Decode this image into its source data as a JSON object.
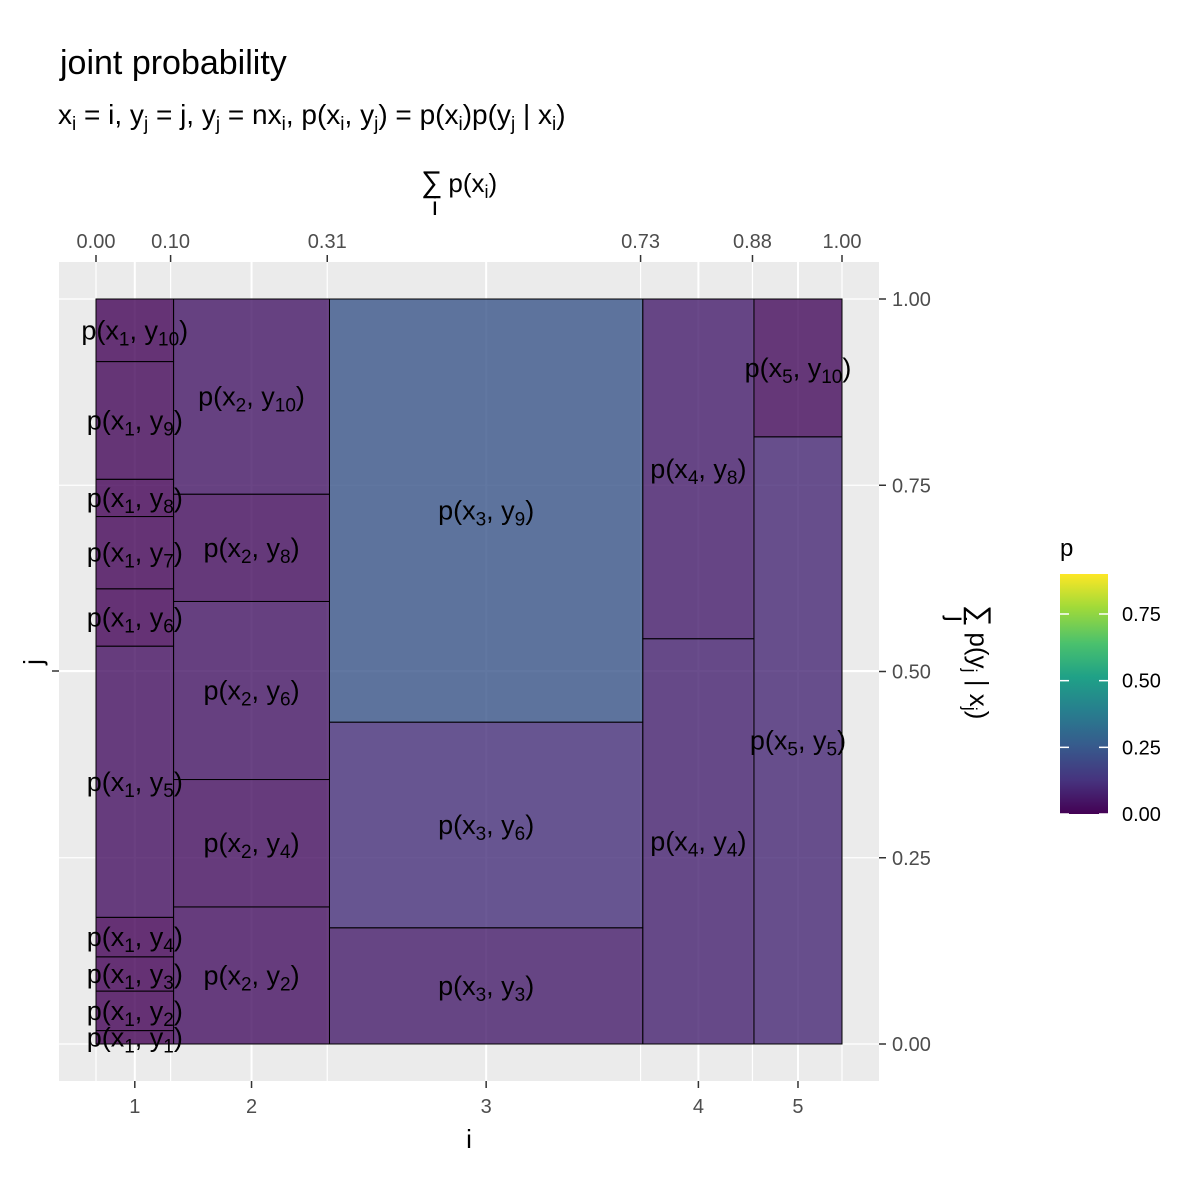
{
  "title": "joint probability",
  "subtitle": "x_i = i, y_j = j, y_j = nx_i, p(x_i, y_j) = p(x_i)p(y_j | x_i)",
  "chart_data": {
    "type": "heatmap",
    "subtype": "mosaic",
    "xlabel": "i",
    "ylabel": "j",
    "x_top_label": "∑_i p(x_i)",
    "y_right_label": "∑_j p(y_j | x_j)",
    "x_ticks": [
      "1",
      "2",
      "3",
      "4",
      "5"
    ],
    "x_top_ticks": [
      "0.00",
      "0.10",
      "0.31",
      "0.73",
      "0.88",
      "1.00"
    ],
    "y_right_ticks": [
      "0.00",
      "0.25",
      "0.50",
      "0.75",
      "1.00"
    ],
    "legend": {
      "title": "p",
      "ticks": [
        "0.00",
        "0.25",
        "0.50",
        "0.75"
      ],
      "range": [
        0,
        0.9
      ],
      "colormap": "viridis",
      "placement": "right"
    },
    "grid": true,
    "columns": [
      {
        "i": 1,
        "px_cum": [
          0.0,
          0.104
        ],
        "cells": [
          {
            "j": 1,
            "lo": 0.0,
            "hi": 0.018,
            "p": 0.001
          },
          {
            "j": 2,
            "lo": 0.018,
            "hi": 0.071,
            "p": 0.005
          },
          {
            "j": 3,
            "lo": 0.071,
            "hi": 0.117,
            "p": 0.005
          },
          {
            "j": 4,
            "lo": 0.117,
            "hi": 0.17,
            "p": 0.005
          },
          {
            "j": 5,
            "lo": 0.17,
            "hi": 0.534,
            "p": 0.038
          },
          {
            "j": 6,
            "lo": 0.534,
            "hi": 0.611,
            "p": 0.008
          },
          {
            "j": 7,
            "lo": 0.611,
            "hi": 0.708,
            "p": 0.01
          },
          {
            "j": 8,
            "lo": 0.708,
            "hi": 0.758,
            "p": 0.005
          },
          {
            "j": 9,
            "lo": 0.758,
            "hi": 0.916,
            "p": 0.016
          },
          {
            "j": 10,
            "lo": 0.916,
            "hi": 1.0,
            "p": 0.009
          }
        ]
      },
      {
        "i": 2,
        "px_cum": [
          0.104,
          0.313
        ],
        "cells": [
          {
            "j": 2,
            "lo": 0.0,
            "hi": 0.184,
            "p": 0.038
          },
          {
            "j": 4,
            "lo": 0.184,
            "hi": 0.355,
            "p": 0.036
          },
          {
            "j": 6,
            "lo": 0.355,
            "hi": 0.594,
            "p": 0.05
          },
          {
            "j": 8,
            "lo": 0.594,
            "hi": 0.738,
            "p": 0.03
          },
          {
            "j": 10,
            "lo": 0.738,
            "hi": 1.0,
            "p": 0.055
          }
        ]
      },
      {
        "i": 3,
        "px_cum": [
          0.313,
          0.733
        ],
        "cells": [
          {
            "j": 3,
            "lo": 0.0,
            "hi": 0.156,
            "p": 0.066
          },
          {
            "j": 6,
            "lo": 0.156,
            "hi": 0.432,
            "p": 0.116
          },
          {
            "j": 9,
            "lo": 0.432,
            "hi": 1.0,
            "p": 0.238
          }
        ]
      },
      {
        "i": 4,
        "px_cum": [
          0.733,
          0.882
        ],
        "cells": [
          {
            "j": 4,
            "lo": 0.0,
            "hi": 0.544,
            "p": 0.081
          },
          {
            "j": 8,
            "lo": 0.544,
            "hi": 1.0,
            "p": 0.068
          }
        ]
      },
      {
        "i": 5,
        "px_cum": [
          0.882,
          1.0
        ],
        "cells": [
          {
            "j": 5,
            "lo": 0.0,
            "hi": 0.815,
            "p": 0.096
          },
          {
            "j": 10,
            "lo": 0.815,
            "hi": 1.0,
            "p": 0.022
          }
        ]
      }
    ]
  }
}
